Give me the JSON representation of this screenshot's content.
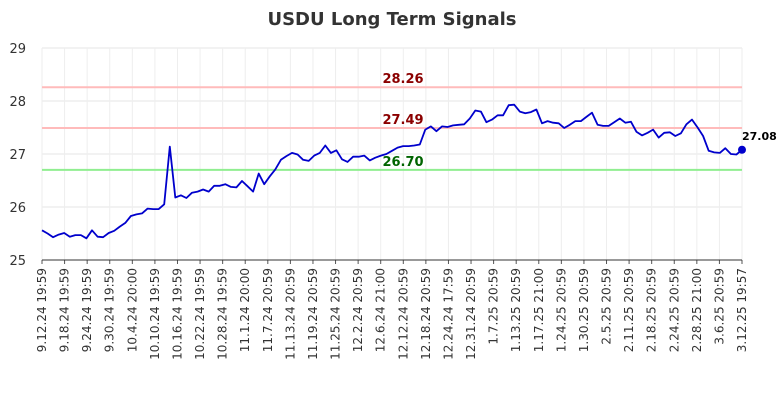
{
  "chart_data": {
    "type": "line",
    "title": "USDU Long Term Signals",
    "xlabel": "",
    "ylabel": "",
    "ylim": [
      25,
      29
    ],
    "yticks": [
      "25",
      "26",
      "27",
      "28",
      "29"
    ],
    "grid": true,
    "x_tick_labels": [
      "9.12.24 19:59",
      "9.18.24 19:59",
      "9.24.24 19:59",
      "9.30.24 19:59",
      "10.4.24 20:00",
      "10.10.24 19:59",
      "10.16.24 19:59",
      "10.22.24 19:59",
      "10.28.24 19:59",
      "11.1.24 20:00",
      "11.7.24 20:59",
      "11.13.24 20:59",
      "11.19.24 20:59",
      "11.25.24 20:59",
      "12.2.24 20:59",
      "12.6.24 21:00",
      "12.12.24 20:59",
      "12.18.24 20:59",
      "12.24.24 17:59",
      "12.31.24 20:59",
      "1.7.25 20:59",
      "1.13.25 20:59",
      "1.17.25 21:00",
      "1.24.25 20:59",
      "1.30.25 20:59",
      "2.5.25 20:59",
      "2.11.25 20:59",
      "2.18.25 20:59",
      "2.24.25 20:59",
      "2.28.25 21:00",
      "3.6.25 20:59",
      "3.12.25 19:57"
    ],
    "series": [
      {
        "color": "#0000cc",
        "values": [
          25.56,
          25.5,
          25.43,
          25.48,
          25.51,
          25.44,
          25.47,
          25.47,
          25.41,
          25.56,
          25.44,
          25.43,
          25.51,
          25.55,
          25.63,
          25.7,
          25.83,
          25.86,
          25.88,
          25.97,
          25.96,
          25.96,
          26.05,
          27.14,
          26.18,
          26.22,
          26.17,
          26.27,
          26.29,
          26.33,
          26.29,
          26.4,
          26.4,
          26.43,
          26.38,
          26.37,
          26.49,
          26.39,
          26.29,
          26.63,
          26.43,
          26.58,
          26.71,
          26.89,
          26.96,
          27.02,
          26.99,
          26.89,
          26.87,
          26.97,
          27.02,
          27.16,
          27.02,
          27.07,
          26.9,
          26.85,
          26.95,
          26.95,
          26.97,
          26.88,
          26.93,
          26.97,
          27.0,
          27.06,
          27.12,
          27.15,
          27.15,
          27.16,
          27.18,
          27.46,
          27.52,
          27.43,
          27.52,
          27.51,
          27.54,
          27.55,
          27.56,
          27.67,
          27.82,
          27.8,
          27.6,
          27.65,
          27.73,
          27.73,
          27.92,
          27.93,
          27.8,
          27.77,
          27.79,
          27.84,
          27.58,
          27.62,
          27.59,
          27.58,
          27.49,
          27.55,
          27.62,
          27.62,
          27.7,
          27.78,
          27.55,
          27.53,
          27.53,
          27.6,
          27.67,
          27.59,
          27.61,
          27.42,
          27.35,
          27.4,
          27.46,
          27.31,
          27.4,
          27.41,
          27.34,
          27.39,
          27.56,
          27.65,
          27.5,
          27.34,
          27.06,
          27.03,
          27.02,
          27.11,
          27.0,
          26.99,
          27.08
        ]
      }
    ],
    "reference_lines": [
      {
        "value": 28.26,
        "label": "28.26",
        "line_color": "#ffbbbb",
        "label_color": "#8b0000"
      },
      {
        "value": 27.49,
        "label": "27.49",
        "line_color": "#ffbbbb",
        "label_color": "#8b0000"
      },
      {
        "value": 26.7,
        "label": "26.70",
        "line_color": "#90ee90",
        "label_color": "#006400"
      }
    ],
    "last_value_label": "27.08"
  }
}
